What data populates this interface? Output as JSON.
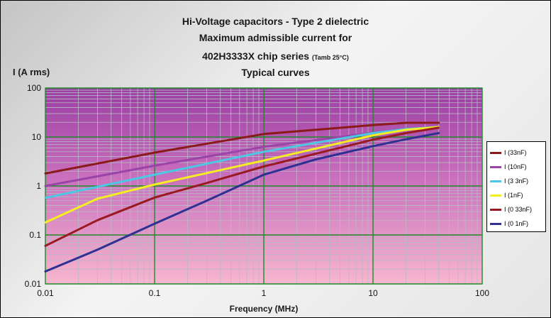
{
  "chart_data": {
    "type": "line",
    "title_lines": [
      "Hi-Voltage capacitors - Type 2 dielectric",
      "Maximum admissible current for",
      "402H3333X chip series",
      "Typical curves"
    ],
    "title_note": "(Tamb 25°C)",
    "xlabel": "Frequency (MHz)",
    "ylabel": "I (A rms)",
    "x_scale": "log",
    "y_scale": "log",
    "xlim": [
      0.01,
      100
    ],
    "ylim": [
      0.01,
      100
    ],
    "x_ticks": [
      0.01,
      0.1,
      1,
      10,
      100
    ],
    "x_tick_labels": [
      "0.01",
      "0.1",
      "1",
      "10",
      "100"
    ],
    "y_ticks": [
      0.01,
      0.1,
      1,
      10,
      100
    ],
    "y_tick_labels": [
      "0.01",
      "0.1",
      "1",
      "10",
      "100"
    ],
    "grid": true,
    "legend_position": "right",
    "series": [
      {
        "name": "I (33nF)",
        "color": "#8b1a1a",
        "x": [
          0.01,
          0.1,
          1,
          10,
          20,
          40
        ],
        "y": [
          1.8,
          4.8,
          11.5,
          17.5,
          19.5,
          19.5
        ]
      },
      {
        "name": "I (10nF)",
        "color": "#9b44a8",
        "x": [
          0.01,
          0.1,
          1,
          10,
          20,
          40
        ],
        "y": [
          1.0,
          2.6,
          6.3,
          12.2,
          14.5,
          16.2
        ]
      },
      {
        "name": "I (3 3nF)",
        "color": "#4cc8e4",
        "x": [
          0.01,
          0.1,
          1,
          10,
          20,
          40
        ],
        "y": [
          0.57,
          1.7,
          5.0,
          12.0,
          14.5,
          16.0
        ]
      },
      {
        "name": "I (1nF)",
        "color": "#f5ef21",
        "x": [
          0.01,
          0.03,
          0.1,
          1,
          10,
          20,
          40
        ],
        "y": [
          0.18,
          0.55,
          1.07,
          3.3,
          10.8,
          14.0,
          16.0
        ]
      },
      {
        "name": "I (0 33nF)",
        "color": "#9a1a22",
        "x": [
          0.01,
          0.03,
          0.1,
          0.3,
          1,
          10,
          20,
          40
        ],
        "y": [
          0.06,
          0.2,
          0.58,
          1.15,
          2.5,
          8.8,
          12.0,
          15.5
        ]
      },
      {
        "name": "I (0 1nF)",
        "color": "#2e3192",
        "x": [
          0.01,
          0.03,
          0.1,
          0.3,
          1,
          3,
          10,
          20,
          40
        ],
        "y": [
          0.018,
          0.05,
          0.17,
          0.5,
          1.7,
          3.5,
          6.5,
          9.0,
          12.0
        ]
      }
    ]
  }
}
